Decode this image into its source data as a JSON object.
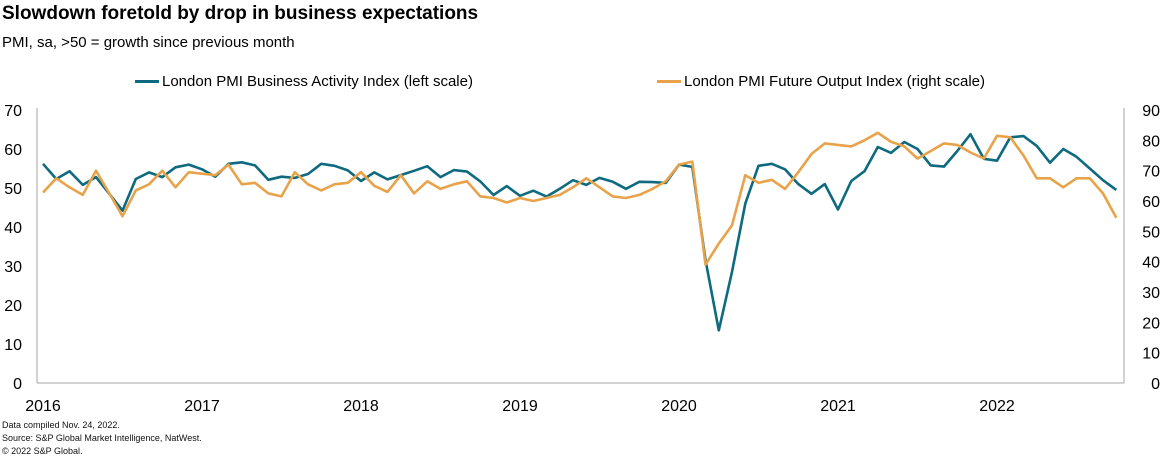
{
  "chart_data": {
    "type": "line",
    "title": "Slowdown  foretold by drop in business expectations",
    "subtitle": "PMI, sa, >50 = growth since previous month",
    "xlabel": "",
    "ylabel_left": "",
    "ylabel_right": "",
    "x_start": "2016-01",
    "x_frequency": "monthly",
    "x_tick_labels": [
      "2016",
      "2017",
      "2018",
      "2019",
      "2020",
      "2021",
      "2022"
    ],
    "y_left_ticks": [
      "0",
      "10",
      "20",
      "30",
      "40",
      "50",
      "60",
      "70"
    ],
    "y_right_ticks": [
      "0",
      "10",
      "20",
      "30",
      "40",
      "50",
      "60",
      "70",
      "80",
      "90"
    ],
    "ylim_left": [
      0,
      70
    ],
    "ylim_right": [
      0,
      90
    ],
    "grid": false,
    "legend_position": "top",
    "series": [
      {
        "name": "London PMI Business Activity Index (left scale)",
        "axis": "left",
        "color": "#0e6a7f",
        "values": [
          56.2,
          52.3,
          54.3,
          50.8,
          52.8,
          48.5,
          44.2,
          52.3,
          54.0,
          52.8,
          55.3,
          56.0,
          54.8,
          52.9,
          56.2,
          56.6,
          55.8,
          52.1,
          52.9,
          52.6,
          53.6,
          56.2,
          55.7,
          54.5,
          51.8,
          54.0,
          52.2,
          53.3,
          54.4,
          55.6,
          52.8,
          54.6,
          54.2,
          51.7,
          48.2,
          50.5,
          48.0,
          49.3,
          47.8,
          49.8,
          52.0,
          50.8,
          52.6,
          51.6,
          49.8,
          51.6,
          51.5,
          51.3,
          56.0,
          55.4,
          31.5,
          13.5,
          28.5,
          46.0,
          55.7,
          56.2,
          54.8,
          51.0,
          48.5,
          51.0,
          44.5,
          51.8,
          54.3,
          60.5,
          59.0,
          61.8,
          60.0,
          55.8,
          55.5,
          59.5,
          63.8,
          57.5,
          57.0,
          63.0,
          63.3,
          60.8,
          56.5,
          60.0,
          58.0,
          55.0,
          52.0,
          49.5
        ]
      },
      {
        "name": "London PMI Future Output Index (right scale)",
        "axis": "right",
        "color": "#e8a34a",
        "values": [
          62.8,
          67.5,
          64.5,
          62.0,
          70.0,
          62.5,
          55.0,
          63.5,
          65.5,
          70.0,
          64.5,
          69.5,
          69.0,
          68.5,
          72.0,
          65.5,
          66.0,
          62.5,
          61.5,
          69.5,
          65.5,
          63.5,
          65.5,
          66.0,
          69.5,
          65.0,
          63.0,
          68.5,
          62.5,
          66.5,
          64.0,
          65.5,
          66.5,
          61.5,
          61.0,
          59.5,
          61.0,
          60.0,
          61.0,
          62.0,
          64.5,
          67.5,
          64.5,
          61.5,
          61.0,
          62.0,
          64.0,
          66.5,
          72.0,
          73.0,
          39.0,
          46.0,
          52.0,
          68.5,
          66.0,
          67.0,
          64.0,
          69.5,
          75.5,
          79.0,
          78.5,
          78.0,
          80.0,
          82.5,
          79.5,
          78.0,
          74.0,
          76.5,
          79.0,
          78.5,
          76.0,
          74.0,
          81.5,
          81.0,
          75.0,
          67.5,
          67.5,
          64.5,
          67.5,
          67.5,
          62.5,
          54.5
        ]
      }
    ]
  },
  "footer": {
    "compiled": "Data compiled Nov. 24, 2022.",
    "source": "Source: S&P Global Market Intelligence, NatWest.",
    "copyright": "© 2022 S&P Global."
  }
}
